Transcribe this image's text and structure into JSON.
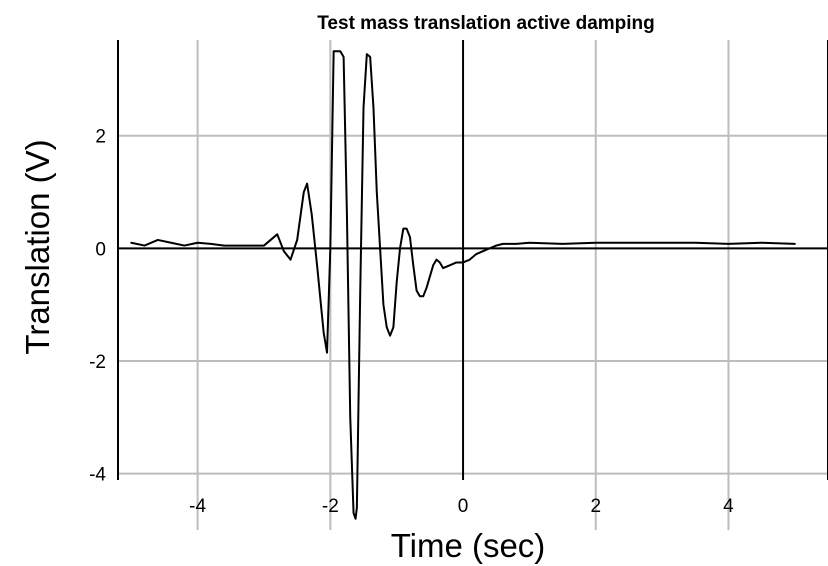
{
  "chart_data": {
    "type": "line",
    "title": "Test mass translation active damping",
    "xlabel": "Time (sec)",
    "ylabel": "Translation (V)",
    "xlim": [
      -5.2,
      5.5
    ],
    "ylim": [
      -5,
      3.7
    ],
    "xticks": [
      -4,
      -2,
      0,
      2,
      4
    ],
    "yticks": [
      2,
      0,
      -2,
      -4
    ],
    "grid": true,
    "colors": {
      "line": "#000000",
      "grid": "#bdbdbd",
      "background": "#ffffff"
    },
    "series": [
      {
        "x": [
          -5.0,
          -4.8,
          -4.6,
          -4.4,
          -4.2,
          -4.0,
          -3.8,
          -3.6,
          -3.4,
          -3.2,
          -3.0,
          -2.9,
          -2.8,
          -2.7,
          -2.6,
          -2.5,
          -2.4,
          -2.35,
          -2.28,
          -2.2,
          -2.1,
          -2.05,
          -2.0,
          -1.95,
          -1.9,
          -1.85,
          -1.8,
          -1.75,
          -1.7,
          -1.65,
          -1.62,
          -1.6,
          -1.55,
          -1.5,
          -1.45,
          -1.4,
          -1.35,
          -1.3,
          -1.25,
          -1.2,
          -1.15,
          -1.1,
          -1.05,
          -1.0,
          -0.95,
          -0.9,
          -0.85,
          -0.8,
          -0.75,
          -0.7,
          -0.65,
          -0.6,
          -0.55,
          -0.5,
          -0.45,
          -0.4,
          -0.35,
          -0.3,
          -0.2,
          -0.1,
          0.0,
          0.1,
          0.2,
          0.3,
          0.4,
          0.5,
          0.6,
          0.8,
          1.0,
          1.5,
          2.0,
          2.5,
          3.0,
          3.5,
          4.0,
          4.5,
          5.0
        ],
        "y": [
          0.1,
          0.05,
          0.15,
          0.1,
          0.05,
          0.1,
          0.08,
          0.05,
          0.05,
          0.05,
          0.05,
          0.15,
          0.25,
          -0.05,
          -0.2,
          0.15,
          1.0,
          1.15,
          0.6,
          -0.3,
          -1.5,
          -1.85,
          0.0,
          3.5,
          3.5,
          3.5,
          3.4,
          0.6,
          -3.0,
          -4.7,
          -4.8,
          -4.6,
          -0.8,
          2.5,
          3.45,
          3.4,
          2.5,
          1.0,
          0.0,
          -1.0,
          -1.4,
          -1.55,
          -1.4,
          -0.6,
          0.0,
          0.35,
          0.35,
          0.2,
          -0.3,
          -0.75,
          -0.85,
          -0.85,
          -0.7,
          -0.5,
          -0.3,
          -0.2,
          -0.25,
          -0.35,
          -0.3,
          -0.25,
          -0.25,
          -0.2,
          -0.1,
          -0.05,
          0.0,
          0.05,
          0.08,
          0.08,
          0.1,
          0.08,
          0.1,
          0.1,
          0.1,
          0.1,
          0.08,
          0.1,
          0.08
        ]
      }
    ]
  }
}
